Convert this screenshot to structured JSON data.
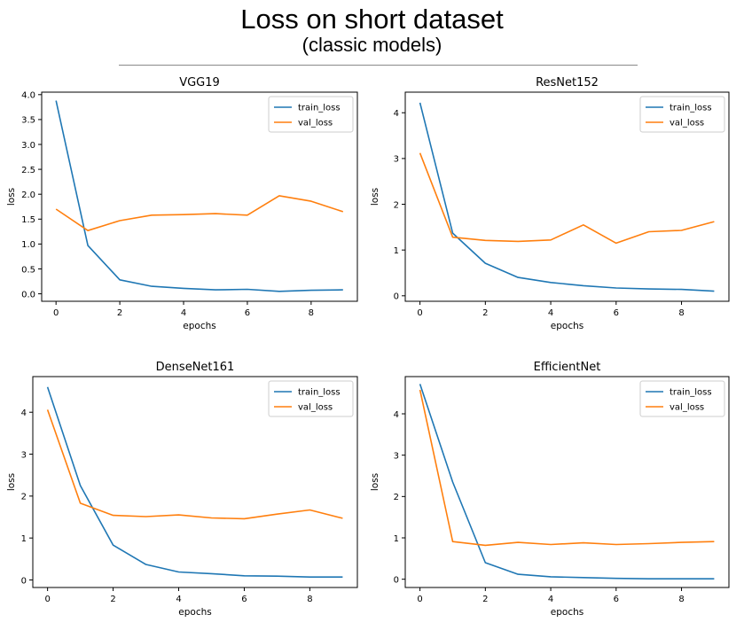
{
  "header": {
    "title": "Loss on short dataset",
    "subtitle": "(classic models)"
  },
  "colors": {
    "train": "#1f77b4",
    "val": "#ff7f0e"
  },
  "chart_data": [
    {
      "type": "line",
      "title": "VGG19",
      "xlabel": "epochs",
      "ylabel": "loss",
      "x": [
        0,
        1,
        2,
        3,
        4,
        5,
        6,
        7,
        8,
        9
      ],
      "xlim": [
        -0.45,
        9.45
      ],
      "ylim": [
        -0.15,
        4.05
      ],
      "xticks": [
        0,
        2,
        4,
        6,
        8
      ],
      "yticks": [
        0.0,
        0.5,
        1.0,
        1.5,
        2.0,
        2.5,
        3.0,
        3.5,
        4.0
      ],
      "ytick_labels": [
        "0.0",
        "0.5",
        "1.0",
        "1.5",
        "2.0",
        "2.5",
        "3.0",
        "3.5",
        "4.0"
      ],
      "legend": "top-right",
      "series": [
        {
          "name": "train_loss",
          "values": [
            3.88,
            0.97,
            0.28,
            0.15,
            0.11,
            0.08,
            0.09,
            0.05,
            0.07,
            0.08
          ]
        },
        {
          "name": "val_loss",
          "values": [
            1.7,
            1.27,
            1.47,
            1.58,
            1.59,
            1.61,
            1.58,
            1.97,
            1.86,
            1.65
          ]
        }
      ]
    },
    {
      "type": "line",
      "title": "ResNet152",
      "xlabel": "epochs",
      "ylabel": "loss",
      "x": [
        0,
        1,
        2,
        3,
        4,
        5,
        6,
        7,
        8,
        9
      ],
      "xlim": [
        -0.45,
        9.45
      ],
      "ylim": [
        -0.12,
        4.45
      ],
      "xticks": [
        0,
        2,
        4,
        6,
        8
      ],
      "yticks": [
        0,
        1,
        2,
        3,
        4
      ],
      "ytick_labels": [
        "0",
        "1",
        "2",
        "3",
        "4"
      ],
      "legend": "top-right",
      "series": [
        {
          "name": "train_loss",
          "values": [
            4.22,
            1.37,
            0.71,
            0.4,
            0.29,
            0.22,
            0.17,
            0.15,
            0.14,
            0.1
          ]
        },
        {
          "name": "val_loss",
          "values": [
            3.12,
            1.28,
            1.21,
            1.19,
            1.22,
            1.55,
            1.15,
            1.4,
            1.43,
            1.62
          ]
        }
      ]
    },
    {
      "type": "line",
      "title": "DenseNet161",
      "xlabel": "epochs",
      "ylabel": "loss",
      "x": [
        0,
        1,
        2,
        3,
        4,
        5,
        6,
        7,
        8,
        9
      ],
      "xlim": [
        -0.45,
        9.45
      ],
      "ylim": [
        -0.18,
        4.85
      ],
      "xticks": [
        0,
        2,
        4,
        6,
        8
      ],
      "yticks": [
        0,
        1,
        2,
        3,
        4
      ],
      "ytick_labels": [
        "0",
        "1",
        "2",
        "3",
        "4"
      ],
      "legend": "top-right",
      "series": [
        {
          "name": "train_loss",
          "values": [
            4.6,
            2.25,
            0.83,
            0.37,
            0.19,
            0.15,
            0.1,
            0.09,
            0.07,
            0.07
          ]
        },
        {
          "name": "val_loss",
          "values": [
            4.06,
            1.83,
            1.54,
            1.51,
            1.55,
            1.48,
            1.46,
            1.57,
            1.67,
            1.47
          ]
        }
      ]
    },
    {
      "type": "line",
      "title": "EfficientNet",
      "xlabel": "epochs",
      "ylabel": "loss",
      "x": [
        0,
        1,
        2,
        3,
        4,
        5,
        6,
        7,
        8,
        9
      ],
      "xlim": [
        -0.45,
        9.45
      ],
      "ylim": [
        -0.2,
        4.9
      ],
      "xticks": [
        0,
        2,
        4,
        6,
        8
      ],
      "yticks": [
        0,
        1,
        2,
        3,
        4
      ],
      "ytick_labels": [
        "0",
        "1",
        "2",
        "3",
        "4"
      ],
      "legend": "top-right",
      "series": [
        {
          "name": "train_loss",
          "values": [
            4.72,
            2.35,
            0.4,
            0.12,
            0.06,
            0.04,
            0.02,
            0.01,
            0.01,
            0.01
          ]
        },
        {
          "name": "val_loss",
          "values": [
            4.58,
            0.91,
            0.82,
            0.89,
            0.84,
            0.88,
            0.84,
            0.86,
            0.89,
            0.91
          ]
        }
      ]
    }
  ]
}
